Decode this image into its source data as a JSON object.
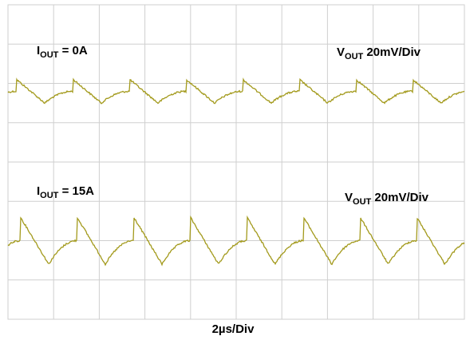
{
  "chart_data": {
    "type": "line",
    "title": "",
    "xlabel": "2µs/Div",
    "ylabel": "",
    "grid": true,
    "grid_divisions": {
      "x": 10,
      "y": 8
    },
    "time_per_div_us": 2,
    "x_range_us": [
      0,
      20
    ],
    "colors": {
      "trace": "#a39a1c",
      "grid": "#cfcfcf"
    },
    "traces": [
      {
        "condition": {
          "prefix": "I",
          "sub": "OUT",
          "text": " = 0A"
        },
        "scale": {
          "prefix": "V",
          "sub": "OUT",
          "text": " 20mV/Div"
        },
        "ripple_period_us": 2.48,
        "peak_to_peak_div": 0.6,
        "baseline_div": 2.2
      },
      {
        "condition": {
          "prefix": "I",
          "sub": "OUT",
          "text": " = 15A"
        },
        "scale": {
          "prefix": "V",
          "sub": "OUT",
          "text": " 20mV/Div"
        },
        "ripple_period_us": 2.48,
        "peak_to_peak_div": 1.2,
        "baseline_div": 6.0
      }
    ]
  }
}
